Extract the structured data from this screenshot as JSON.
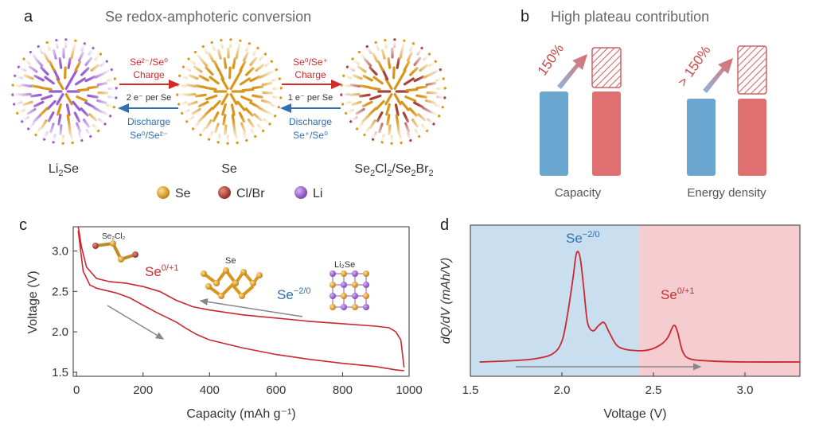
{
  "panel_a": {
    "letter": "a",
    "title": "Se redox-amphoteric conversion",
    "left_arrow": {
      "top_text": "Se²⁻/Se⁰",
      "top_word": "Charge",
      "mid": "2 e⁻ per Se",
      "bottom_word": "Discharge",
      "bottom_text": "Se⁰/Se²⁻"
    },
    "right_arrow": {
      "top_text": "Se⁰/Se⁺",
      "top_word": "Charge",
      "mid": "1 e⁻ per Se",
      "bottom_word": "Discharge",
      "bottom_text": "Se⁺/Se⁰"
    },
    "species": [
      {
        "base": "Li",
        "sub": "2",
        "rest": "Se"
      },
      {
        "base": "Se",
        "sub": "",
        "rest": ""
      },
      {
        "base": "Se",
        "sub": "2",
        "rest": "Cl",
        "sub2": "2",
        "rest2": "/Se",
        "sub3": "2",
        "rest3": "Br",
        "sub4": "2"
      }
    ],
    "legend": [
      {
        "label": "Se",
        "color": "#e09a1c"
      },
      {
        "label": "Cl/Br",
        "color": "#b5473a"
      },
      {
        "label": "Li",
        "color": "#a66bd6"
      }
    ]
  },
  "panel_b": {
    "letter": "b",
    "title": "High plateau contribution",
    "groups": [
      {
        "label": "Capacity",
        "increase": "150%"
      },
      {
        "label": "Energy density",
        "increase": "> 150%"
      }
    ],
    "colors": {
      "blue": "#6aa6d0",
      "red": "#e07070",
      "red_dark": "#c94a4a"
    }
  },
  "panel_c": {
    "letter": "c",
    "xlabel": "Capacity (mAh g⁻¹)",
    "ylabel": "Voltage (V)",
    "annotations": {
      "se_plus": "Se",
      "se_plus_sup": "0/+1",
      "se_minus": "Se",
      "se_minus_sup": "−2/0",
      "mol_se2cl2": "Se₂Cl₂",
      "mol_se": "Se",
      "mol_li2se": "Li₂Se"
    }
  },
  "panel_d": {
    "letter": "d",
    "xlabel": "Voltage (V)",
    "ylabel": "dQ/dV (mAh/V)",
    "annotations": {
      "peak1": "Se",
      "peak1_sup": "−2/0",
      "peak2": "Se",
      "peak2_sup": "0/+1"
    }
  },
  "chart_data": [
    {
      "type": "line",
      "panel": "c",
      "xlabel": "Capacity (mAh g⁻¹)",
      "ylabel": "Voltage (V)",
      "xlim": [
        -10,
        1000
      ],
      "ylim": [
        1.45,
        3.3
      ],
      "xticks": [
        0,
        200,
        400,
        600,
        800,
        1000
      ],
      "yticks": [
        1.5,
        2.0,
        2.5,
        3.0
      ],
      "series": [
        {
          "x": [
            5,
            20,
            40,
            60,
            80,
            120,
            160,
            200,
            240,
            280,
            300,
            330,
            360,
            400,
            500,
            600,
            700,
            800,
            900,
            960,
            985
          ],
          "y": [
            3.25,
            2.75,
            2.58,
            2.54,
            2.52,
            2.48,
            2.42,
            2.33,
            2.24,
            2.16,
            2.12,
            2.04,
            1.97,
            1.9,
            1.8,
            1.72,
            1.66,
            1.61,
            1.57,
            1.53,
            1.52
          ]
        },
        {
          "x": [
            985,
            975,
            960,
            940,
            900,
            800,
            700,
            600,
            500,
            400,
            350,
            300,
            250,
            200,
            150,
            100,
            60,
            30,
            15,
            5
          ],
          "y": [
            1.56,
            1.9,
            2.0,
            2.05,
            2.07,
            2.1,
            2.13,
            2.17,
            2.21,
            2.27,
            2.31,
            2.39,
            2.5,
            2.56,
            2.6,
            2.62,
            2.66,
            2.8,
            3.05,
            3.3
          ]
        }
      ]
    },
    {
      "type": "line",
      "panel": "d",
      "xlabel": "Voltage (V)",
      "ylabel": "dQ/dV (mAh/V)",
      "xlim": [
        1.5,
        3.3
      ],
      "xticks": [
        1.5,
        2.0,
        2.5,
        3.0
      ],
      "shaded_regions": [
        {
          "from": 1.5,
          "to": 2.42,
          "color": "#c9dff0"
        },
        {
          "from": 2.42,
          "to": 3.3,
          "color": "#f5cdd0"
        }
      ],
      "series": [
        {
          "x": [
            1.55,
            1.7,
            1.85,
            1.95,
            2.0,
            2.03,
            2.06,
            2.08,
            2.1,
            2.12,
            2.14,
            2.17,
            2.2,
            2.23,
            2.26,
            2.3,
            2.35,
            2.4,
            2.45,
            2.5,
            2.55,
            2.58,
            2.61,
            2.63,
            2.66,
            2.7,
            2.8,
            3.0,
            3.3
          ],
          "y": [
            0.0,
            0.01,
            0.03,
            0.08,
            0.2,
            0.45,
            0.8,
            1.05,
            1.0,
            0.7,
            0.38,
            0.3,
            0.35,
            0.38,
            0.28,
            0.16,
            0.12,
            0.11,
            0.11,
            0.13,
            0.18,
            0.24,
            0.35,
            0.3,
            0.1,
            0.03,
            0.01,
            0.0,
            0.0
          ]
        }
      ]
    }
  ]
}
